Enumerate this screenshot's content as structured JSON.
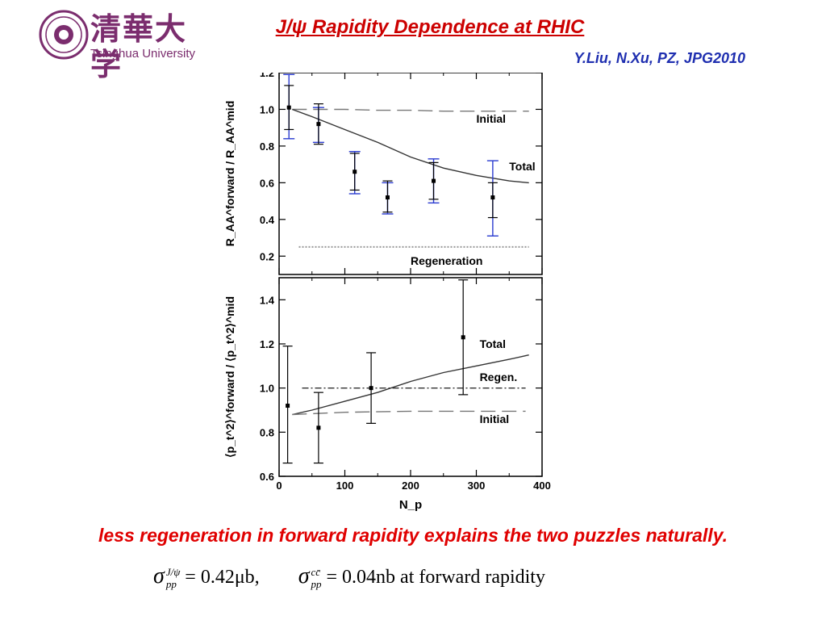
{
  "slide": {
    "title": "J/ψ Rapidity Dependence at RHIC",
    "reference": "Y.Liu, N.Xu, PZ, JPG2010",
    "logo_text_cn": "清華大学",
    "logo_text_en": "Tsinghua University",
    "conclusion": "less regeneration in forward rapidity explains the two puzzles naturally.",
    "formula": {
      "term1_sup": "J/ψ",
      "term1_sub": "pp",
      "term1_rhs": "= 0.42μb,",
      "term2_sup": "cc̄",
      "term2_sub": "pp",
      "term2_rhs": "= 0.04nb",
      "suffix": "at forward rapidity"
    },
    "colors": {
      "title": "#cc0000",
      "reference": "#1f2fb0",
      "conclusion": "#e00000",
      "logo": "#7b2d6e",
      "sys_error": "#2a3bd0"
    }
  },
  "chart_data": [
    {
      "type": "scatter",
      "ylabel": "R_AA^forward / R_AA^mid",
      "xlim": [
        0,
        400
      ],
      "ylim": [
        0.1,
        1.2
      ],
      "yticks": [
        0.2,
        0.4,
        0.6,
        0.8,
        1.0,
        1.2
      ],
      "ytick_labels": [
        "0.2",
        "0.4",
        "0.6",
        "0.8",
        "1.0",
        "1.2"
      ],
      "points": [
        {
          "x": 15,
          "y": 1.01,
          "stat": [
            0.89,
            1.13
          ],
          "sys": [
            0.84,
            1.19
          ]
        },
        {
          "x": 60,
          "y": 0.92,
          "stat": [
            0.81,
            1.03
          ],
          "sys": [
            0.82,
            1.01
          ]
        },
        {
          "x": 115,
          "y": 0.66,
          "stat": [
            0.56,
            0.76
          ],
          "sys": [
            0.54,
            0.77
          ]
        },
        {
          "x": 165,
          "y": 0.52,
          "stat": [
            0.44,
            0.61
          ],
          "sys": [
            0.43,
            0.6
          ]
        },
        {
          "x": 235,
          "y": 0.61,
          "stat": [
            0.51,
            0.71
          ],
          "sys": [
            0.49,
            0.73
          ]
        },
        {
          "x": 325,
          "y": 0.52,
          "stat": [
            0.41,
            0.6
          ],
          "sys": [
            0.31,
            0.72
          ]
        }
      ],
      "curves": [
        {
          "name": "Initial",
          "style": "dashed",
          "x": [
            20,
            50,
            100,
            150,
            200,
            250,
            300,
            350,
            380
          ],
          "y": [
            1.0,
            1.0,
            1.0,
            0.995,
            0.995,
            0.99,
            0.99,
            0.99,
            0.99
          ]
        },
        {
          "name": "Total",
          "style": "solid",
          "x": [
            20,
            50,
            100,
            150,
            200,
            250,
            300,
            350,
            380
          ],
          "y": [
            1.0,
            0.96,
            0.89,
            0.82,
            0.74,
            0.68,
            0.64,
            0.61,
            0.6
          ]
        },
        {
          "name": "Regeneration",
          "style": "dotted",
          "x": [
            30,
            100,
            200,
            300,
            380
          ],
          "y": [
            0.25,
            0.25,
            0.25,
            0.25,
            0.25
          ]
        }
      ],
      "labels": [
        {
          "text": "Initial",
          "x": 300,
          "y": 0.95
        },
        {
          "text": "Total",
          "x": 350,
          "y": 0.69
        },
        {
          "text": "Regeneration",
          "x": 200,
          "y": 0.175
        }
      ]
    },
    {
      "type": "scatter",
      "ylabel": "⟨p_t^2⟩^forward / ⟨p_t^2⟩^mid",
      "xlabel": "N_p",
      "xlim": [
        0,
        400
      ],
      "ylim": [
        0.6,
        1.5
      ],
      "xticks": [
        0,
        100,
        200,
        300,
        400
      ],
      "xtick_labels": [
        "0",
        "100",
        "200",
        "300",
        "400"
      ],
      "yticks": [
        0.6,
        0.8,
        1.0,
        1.2,
        1.4
      ],
      "ytick_labels": [
        "0.6",
        "0.8",
        "1.0",
        "1.2",
        "1.4"
      ],
      "points": [
        {
          "x": 13,
          "y": 0.92,
          "stat": [
            0.66,
            1.19
          ]
        },
        {
          "x": 60,
          "y": 0.82,
          "stat": [
            0.66,
            0.98
          ]
        },
        {
          "x": 140,
          "y": 1.0,
          "stat": [
            0.84,
            1.16
          ]
        },
        {
          "x": 280,
          "y": 1.23,
          "stat": [
            0.97,
            1.49
          ]
        }
      ],
      "curves": [
        {
          "name": "Total",
          "style": "solid",
          "x": [
            20,
            50,
            100,
            150,
            200,
            250,
            300,
            350,
            380
          ],
          "y": [
            0.88,
            0.9,
            0.94,
            0.98,
            1.03,
            1.07,
            1.1,
            1.13,
            1.15
          ]
        },
        {
          "name": "Regen.",
          "style": "dashdot",
          "x": [
            35,
            100,
            200,
            300,
            375
          ],
          "y": [
            1.0,
            1.0,
            1.0,
            1.0,
            1.0
          ]
        },
        {
          "name": "Initial",
          "style": "dashed",
          "x": [
            20,
            100,
            200,
            300,
            375
          ],
          "y": [
            0.88,
            0.89,
            0.895,
            0.895,
            0.895
          ]
        }
      ],
      "labels": [
        {
          "text": "Total",
          "x": 305,
          "y": 1.2
        },
        {
          "text": "Regen.",
          "x": 305,
          "y": 1.05
        },
        {
          "text": "Initial",
          "x": 305,
          "y": 0.86
        }
      ]
    }
  ]
}
